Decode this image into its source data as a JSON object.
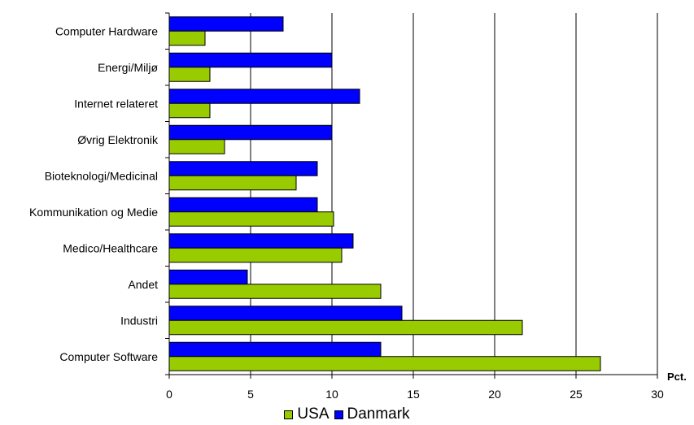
{
  "chart_data": {
    "type": "bar",
    "orientation": "horizontal",
    "categories": [
      "Computer Hardware",
      "Energi/Miljø",
      "Internet relateret",
      "Øvrig Elektronik",
      "Bioteknologi/Medicinal",
      "Kommunikation og Medie",
      "Medico/Healthcare",
      "Andet",
      "Industri",
      "Computer Software"
    ],
    "series": [
      {
        "name": "Danmark",
        "color": "#0000FF",
        "values": [
          7.0,
          10.0,
          11.7,
          10.0,
          9.1,
          9.1,
          11.3,
          4.8,
          14.3,
          13.0
        ]
      },
      {
        "name": "USA",
        "color": "#99CC00",
        "values": [
          2.2,
          2.5,
          2.5,
          3.4,
          7.8,
          10.1,
          10.6,
          13.0,
          21.7,
          26.5
        ]
      }
    ],
    "x_ticks": [
      "0",
      "5",
      "10",
      "15",
      "20",
      "25",
      "30"
    ],
    "xlim": [
      0,
      30
    ],
    "x_unit_label": "Pct.",
    "grid": "vertical",
    "legend": {
      "placement": "bottom",
      "entries": [
        "USA",
        "Danmark"
      ]
    }
  }
}
